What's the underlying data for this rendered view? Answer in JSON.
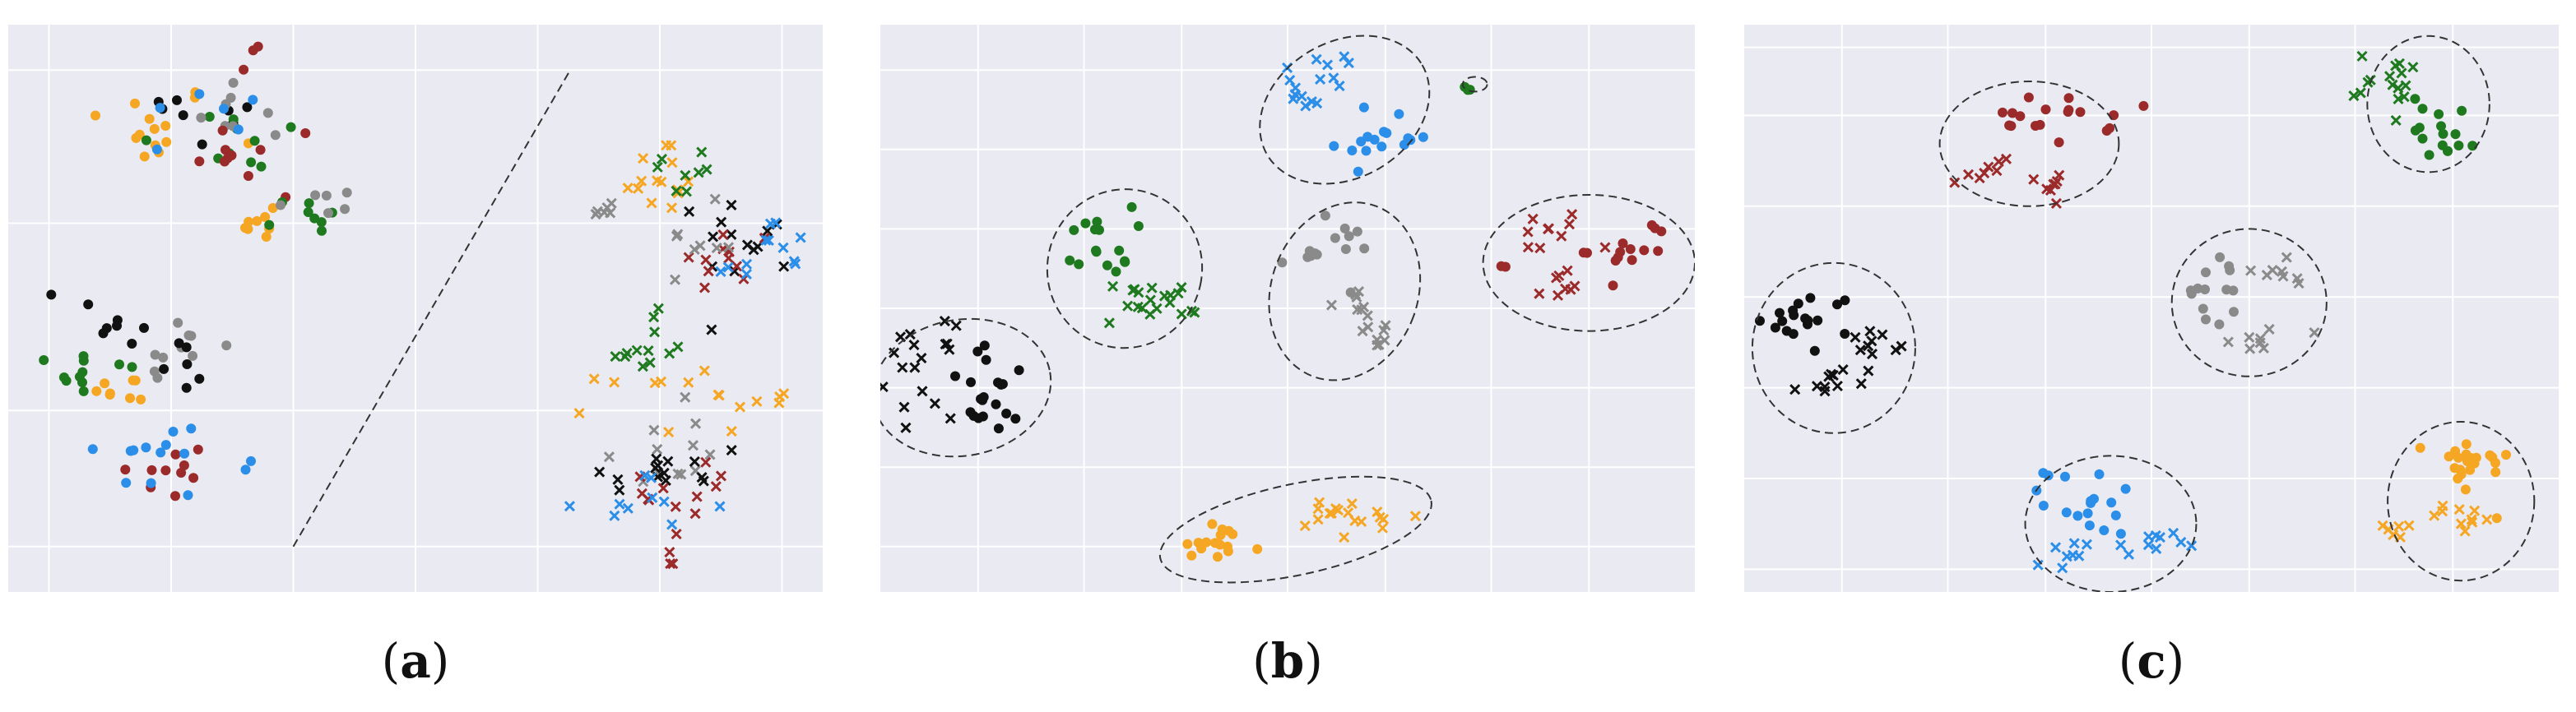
{
  "colors": {
    "background": "#eaeaf2",
    "grid": "#ffffff",
    "outline": "#333333",
    "classes": {
      "orange": "#f5a623",
      "black": "#111111",
      "green": "#1f7a1f",
      "gray": "#8a8a8a",
      "blue": "#2b8ee8",
      "red": "#9b2a2a"
    }
  },
  "marker_legend": {
    "dot": "circle",
    "x": "cross"
  },
  "chart_data": [
    {
      "type": "scatter",
      "panel": "a",
      "caption_letter": "a",
      "xlim": [
        0,
        100
      ],
      "ylim": [
        0,
        100
      ],
      "grid": true,
      "xticks_lines": [
        5,
        20,
        35,
        50,
        65,
        80,
        95
      ],
      "yticks_lines": [
        8,
        32,
        65,
        92
      ],
      "divider_line": [
        [
          35,
          8
        ],
        [
          69,
          92
        ]
      ],
      "clusters": [
        {
          "color": "orange",
          "marker": "dot",
          "cx": 17,
          "cy": 82,
          "sx": 4.5,
          "sy": 4,
          "n": 14
        },
        {
          "color": "black",
          "marker": "dot",
          "cx": 22,
          "cy": 84,
          "sx": 6,
          "sy": 3,
          "n": 8
        },
        {
          "color": "green",
          "marker": "dot",
          "cx": 28,
          "cy": 78,
          "sx": 6,
          "sy": 4,
          "n": 10
        },
        {
          "color": "gray",
          "marker": "dot",
          "cx": 31,
          "cy": 87,
          "sx": 5,
          "sy": 4,
          "n": 8
        },
        {
          "color": "blue",
          "marker": "dot",
          "cx": 24,
          "cy": 81,
          "sx": 4,
          "sy": 4,
          "n": 6
        },
        {
          "color": "red",
          "marker": "dot",
          "cx": 33,
          "cy": 76,
          "sx": 5,
          "sy": 4,
          "n": 10
        },
        {
          "color": "orange",
          "marker": "dot",
          "cx": 31,
          "cy": 66,
          "sx": 2.5,
          "sy": 2,
          "n": 8
        },
        {
          "color": "green",
          "marker": "dot",
          "cx": 36,
          "cy": 66,
          "sx": 3,
          "sy": 2,
          "n": 8
        },
        {
          "color": "gray",
          "marker": "dot",
          "cx": 38,
          "cy": 69,
          "sx": 2.5,
          "sy": 2,
          "n": 6
        },
        {
          "color": "red",
          "marker": "dot",
          "cx": 30,
          "cy": 93,
          "sx": 1,
          "sy": 2,
          "n": 3
        },
        {
          "color": "black",
          "marker": "dot",
          "cx": 13,
          "cy": 49,
          "sx": 3,
          "sy": 3,
          "n": 8
        },
        {
          "color": "green",
          "marker": "dot",
          "cx": 8,
          "cy": 39,
          "sx": 4,
          "sy": 3,
          "n": 12
        },
        {
          "color": "orange",
          "marker": "dot",
          "cx": 13,
          "cy": 35,
          "sx": 3,
          "sy": 2.5,
          "n": 8
        },
        {
          "color": "gray",
          "marker": "dot",
          "cx": 21,
          "cy": 43,
          "sx": 2.5,
          "sy": 3,
          "n": 10
        },
        {
          "color": "black",
          "marker": "dot",
          "cx": 22,
          "cy": 40,
          "sx": 2,
          "sy": 5,
          "n": 6
        },
        {
          "color": "red",
          "marker": "dot",
          "cx": 19,
          "cy": 21,
          "sx": 3,
          "sy": 3,
          "n": 10
        },
        {
          "color": "blue",
          "marker": "dot",
          "cx": 19,
          "cy": 24,
          "sx": 4,
          "sy": 4,
          "n": 12
        },
        {
          "color": "blue",
          "marker": "dot",
          "cx": 29.5,
          "cy": 22,
          "sx": 0.6,
          "sy": 0.8,
          "n": 2
        },
        {
          "color": "orange",
          "marker": "x",
          "cx": 80,
          "cy": 73,
          "sx": 2.5,
          "sy": 4,
          "n": 14
        },
        {
          "color": "green",
          "marker": "x",
          "cx": 83,
          "cy": 74,
          "sx": 2,
          "sy": 2.5,
          "n": 8
        },
        {
          "color": "gray",
          "marker": "x",
          "cx": 73.5,
          "cy": 67,
          "sx": 1.2,
          "sy": 1,
          "n": 6
        },
        {
          "color": "black",
          "marker": "x",
          "cx": 91,
          "cy": 63,
          "sx": 3,
          "sy": 4,
          "n": 14
        },
        {
          "color": "red",
          "marker": "x",
          "cx": 88,
          "cy": 58,
          "sx": 3,
          "sy": 3.5,
          "n": 12
        },
        {
          "color": "blue",
          "marker": "x",
          "cx": 93,
          "cy": 59,
          "sx": 3,
          "sy": 4,
          "n": 12
        },
        {
          "color": "gray",
          "marker": "x",
          "cx": 85,
          "cy": 62,
          "sx": 2,
          "sy": 3,
          "n": 8
        },
        {
          "color": "green",
          "marker": "x",
          "cx": 78,
          "cy": 43,
          "sx": 3,
          "sy": 3,
          "n": 12
        },
        {
          "color": "orange",
          "marker": "x",
          "cx": 85,
          "cy": 34,
          "sx": 6,
          "sy": 3,
          "n": 16
        },
        {
          "color": "gray",
          "marker": "x",
          "cx": 79,
          "cy": 25,
          "sx": 3,
          "sy": 4,
          "n": 12
        },
        {
          "color": "black",
          "marker": "x",
          "cx": 81,
          "cy": 21,
          "sx": 5,
          "sy": 4,
          "n": 14
        },
        {
          "color": "red",
          "marker": "x",
          "cx": 84,
          "cy": 18,
          "sx": 3,
          "sy": 5,
          "n": 12
        },
        {
          "color": "blue",
          "marker": "x",
          "cx": 79,
          "cy": 15,
          "sx": 4,
          "sy": 3,
          "n": 10
        },
        {
          "color": "red",
          "marker": "x",
          "cx": 81,
          "cy": 5,
          "sx": 0.8,
          "sy": 1,
          "n": 3
        }
      ],
      "ellipses": []
    },
    {
      "type": "scatter",
      "panel": "b",
      "caption_letter": "b",
      "xlim": [
        0,
        100
      ],
      "ylim": [
        0,
        100
      ],
      "grid": true,
      "xticks_lines": [
        12,
        25,
        37,
        50,
        62,
        75,
        87
      ],
      "yticks_lines": [
        8,
        22,
        36,
        50,
        64,
        78,
        92
      ],
      "clusters": [
        {
          "color": "blue",
          "marker": "x",
          "cx": 54,
          "cy": 92,
          "sx": 3,
          "sy": 2,
          "n": 10
        },
        {
          "color": "blue",
          "marker": "x",
          "cx": 52,
          "cy": 88,
          "sx": 2,
          "sy": 1.5,
          "n": 6
        },
        {
          "color": "blue",
          "marker": "dot",
          "cx": 62,
          "cy": 80,
          "sx": 3,
          "sy": 3,
          "n": 16
        },
        {
          "color": "green",
          "marker": "dot",
          "cx": 72.5,
          "cy": 88.5,
          "sx": 0.5,
          "sy": 0.3,
          "n": 3
        },
        {
          "color": "green",
          "marker": "dot",
          "cx": 27,
          "cy": 62,
          "sx": 2,
          "sy": 3,
          "n": 16
        },
        {
          "color": "green",
          "marker": "x",
          "cx": 33,
          "cy": 51,
          "sx": 3,
          "sy": 2,
          "n": 20
        },
        {
          "color": "gray",
          "marker": "dot",
          "cx": 55,
          "cy": 60,
          "sx": 3,
          "sy": 2.5,
          "n": 14
        },
        {
          "color": "gray",
          "marker": "x",
          "cx": 58,
          "cy": 51,
          "sx": 1.5,
          "sy": 1.5,
          "n": 8
        },
        {
          "color": "gray",
          "marker": "x",
          "cx": 61,
          "cy": 45,
          "sx": 1.5,
          "sy": 1.5,
          "n": 8
        },
        {
          "color": "red",
          "marker": "x",
          "cx": 82,
          "cy": 63,
          "sx": 2.5,
          "sy": 2,
          "n": 10
        },
        {
          "color": "red",
          "marker": "dot",
          "cx": 92,
          "cy": 61,
          "sx": 2.5,
          "sy": 3,
          "n": 14
        },
        {
          "color": "red",
          "marker": "x",
          "cx": 84,
          "cy": 53,
          "sx": 1.5,
          "sy": 2,
          "n": 8
        },
        {
          "color": "red",
          "marker": "dot",
          "cx": 77,
          "cy": 58,
          "sx": 0.6,
          "sy": 0.4,
          "n": 2
        },
        {
          "color": "black",
          "marker": "x",
          "cx": 5,
          "cy": 39,
          "sx": 2,
          "sy": 4,
          "n": 18
        },
        {
          "color": "black",
          "marker": "dot",
          "cx": 14,
          "cy": 35,
          "sx": 3,
          "sy": 4,
          "n": 20
        },
        {
          "color": "orange",
          "marker": "dot",
          "cx": 41,
          "cy": 8,
          "sx": 3,
          "sy": 2,
          "n": 16
        },
        {
          "color": "orange",
          "marker": "x",
          "cx": 58,
          "cy": 13,
          "sx": 4,
          "sy": 2,
          "n": 18
        }
      ],
      "ellipses": [
        {
          "cx": 57,
          "cy": 85,
          "rx": 11,
          "ry": 12,
          "rot": -30
        },
        {
          "cx": 73,
          "cy": 89.5,
          "rx": 1.5,
          "ry": 1.3,
          "rot": 0
        },
        {
          "cx": 30,
          "cy": 57,
          "rx": 9.5,
          "ry": 14,
          "rot": 10
        },
        {
          "cx": 57,
          "cy": 53,
          "rx": 9,
          "ry": 16,
          "rot": 20
        },
        {
          "cx": 87,
          "cy": 58,
          "rx": 13,
          "ry": 12,
          "rot": 0
        },
        {
          "cx": 10,
          "cy": 36,
          "rx": 11,
          "ry": 12,
          "rot": -10
        },
        {
          "cx": 51,
          "cy": 11,
          "rx": 17,
          "ry": 8,
          "rot": -12
        }
      ]
    },
    {
      "type": "scatter",
      "panel": "c",
      "caption_letter": "c",
      "xlim": [
        0,
        100
      ],
      "ylim": [
        0,
        100
      ],
      "grid": true,
      "xticks_lines": [
        12,
        25,
        37,
        50,
        62,
        75,
        87
      ],
      "yticks_lines": [
        4,
        20,
        36,
        52,
        68,
        84,
        96
      ],
      "clusters": [
        {
          "color": "green",
          "marker": "x",
          "cx": 80,
          "cy": 90,
          "sx": 2.5,
          "sy": 2.5,
          "n": 16
        },
        {
          "color": "green",
          "marker": "dot",
          "cx": 86,
          "cy": 82,
          "sx": 2,
          "sy": 3,
          "n": 16
        },
        {
          "color": "red",
          "marker": "dot",
          "cx": 37,
          "cy": 83,
          "sx": 4,
          "sy": 2,
          "n": 18
        },
        {
          "color": "red",
          "marker": "x",
          "cx": 30,
          "cy": 75,
          "sx": 2,
          "sy": 1.5,
          "n": 8
        },
        {
          "color": "red",
          "marker": "x",
          "cx": 37,
          "cy": 72,
          "sx": 1,
          "sy": 2,
          "n": 8
        },
        {
          "color": "gray",
          "marker": "dot",
          "cx": 58,
          "cy": 53,
          "sx": 2,
          "sy": 3,
          "n": 14
        },
        {
          "color": "gray",
          "marker": "x",
          "cx": 65,
          "cy": 56,
          "sx": 2,
          "sy": 2,
          "n": 8
        },
        {
          "color": "gray",
          "marker": "x",
          "cx": 64,
          "cy": 46,
          "sx": 2,
          "sy": 2,
          "n": 8
        },
        {
          "color": "black",
          "marker": "dot",
          "cx": 8,
          "cy": 48,
          "sx": 3,
          "sy": 2.5,
          "n": 18
        },
        {
          "color": "black",
          "marker": "x",
          "cx": 16,
          "cy": 44,
          "sx": 1.5,
          "sy": 1.3,
          "n": 10
        },
        {
          "color": "black",
          "marker": "x",
          "cx": 10,
          "cy": 37,
          "sx": 1.5,
          "sy": 1.5,
          "n": 10
        },
        {
          "color": "blue",
          "marker": "dot",
          "cx": 43,
          "cy": 16,
          "sx": 3,
          "sy": 3,
          "n": 18
        },
        {
          "color": "blue",
          "marker": "x",
          "cx": 50,
          "cy": 8,
          "sx": 2,
          "sy": 1.5,
          "n": 10
        },
        {
          "color": "blue",
          "marker": "x",
          "cx": 39,
          "cy": 6,
          "sx": 1.5,
          "sy": 1.5,
          "n": 8
        },
        {
          "color": "orange",
          "marker": "dot",
          "cx": 89,
          "cy": 22,
          "sx": 2.5,
          "sy": 3,
          "n": 22
        },
        {
          "color": "orange",
          "marker": "x",
          "cx": 87,
          "cy": 13,
          "sx": 3,
          "sy": 1.5,
          "n": 10
        },
        {
          "color": "orange",
          "marker": "x",
          "cx": 80,
          "cy": 11,
          "sx": 1.5,
          "sy": 1.5,
          "n": 6
        }
      ],
      "ellipses": [
        {
          "cx": 84,
          "cy": 86,
          "rx": 7.5,
          "ry": 12,
          "rot": 0
        },
        {
          "cx": 35,
          "cy": 79,
          "rx": 11,
          "ry": 11,
          "rot": 0
        },
        {
          "cx": 62,
          "cy": 51,
          "rx": 9.5,
          "ry": 13,
          "rot": 0
        },
        {
          "cx": 11,
          "cy": 43,
          "rx": 10,
          "ry": 15,
          "rot": 0
        },
        {
          "cx": 45,
          "cy": 12,
          "rx": 10.5,
          "ry": 12,
          "rot": 0
        },
        {
          "cx": 88,
          "cy": 16,
          "rx": 9,
          "ry": 14,
          "rot": 0
        }
      ]
    }
  ]
}
